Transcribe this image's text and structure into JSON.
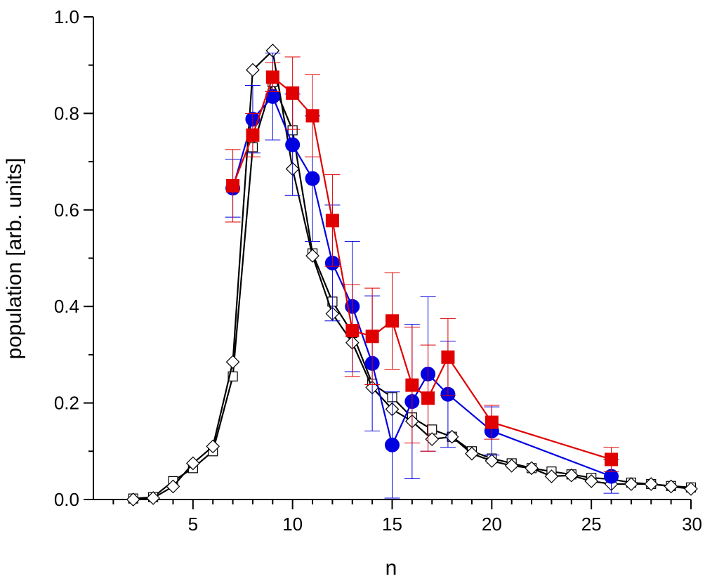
{
  "chart_data": {
    "type": "line",
    "title": "",
    "xlabel": "n",
    "ylabel": "population [arb. units]",
    "xlim": [
      0,
      30
    ],
    "ylim": [
      0,
      1.0
    ],
    "x_ticks_major": [
      5,
      10,
      15,
      20,
      25,
      30
    ],
    "x_tick_labels": [
      "5",
      "10",
      "15",
      "20",
      "25",
      "30"
    ],
    "y_ticks_major": [
      0.0,
      0.2,
      0.4,
      0.6,
      0.8,
      1.0
    ],
    "y_tick_labels": [
      "0.0",
      "0.2",
      "0.4",
      "0.6",
      "0.8",
      "1.0"
    ],
    "grid": false,
    "legend": "none",
    "series": [
      {
        "marker": "filled-square",
        "color": "#e00000",
        "x": [
          7,
          8,
          9,
          10,
          11,
          12,
          13,
          14,
          15,
          16,
          16.8,
          17.8,
          20,
          26
        ],
        "y": [
          0.65,
          0.755,
          0.875,
          0.842,
          0.795,
          0.578,
          0.35,
          0.338,
          0.37,
          0.237,
          0.21,
          0.295,
          0.16,
          0.083
        ],
        "err": [
          0.075,
          0.045,
          0.03,
          0.075,
          0.085,
          0.095,
          0.095,
          0.1,
          0.1,
          0.12,
          0.11,
          0.08,
          0.035,
          0.025
        ]
      },
      {
        "marker": "filled-circle",
        "color": "#0000e0",
        "x": [
          7,
          8,
          9,
          10,
          11,
          12,
          13,
          14,
          15,
          16,
          16.8,
          17.8,
          20,
          26
        ],
        "y": [
          0.645,
          0.788,
          0.835,
          0.735,
          0.665,
          0.49,
          0.4,
          0.282,
          0.113,
          0.203,
          0.26,
          0.218,
          0.142,
          0.048
        ],
        "err": [
          0.06,
          0.07,
          0.09,
          0.105,
          0.13,
          0.12,
          0.135,
          0.14,
          0.11,
          0.16,
          0.16,
          0.11,
          0.05,
          0.035
        ]
      },
      {
        "marker": "open-square",
        "color": "#000000",
        "x": [
          2,
          3,
          4,
          5,
          6,
          7,
          8,
          9,
          10,
          11,
          12,
          13,
          14,
          15,
          16,
          17,
          18,
          19,
          20,
          21,
          22,
          23,
          24,
          25,
          26,
          27,
          28,
          29,
          30
        ],
        "y": [
          0.002,
          0.005,
          0.038,
          0.065,
          0.1,
          0.255,
          0.73,
          0.865,
          0.765,
          0.51,
          0.41,
          0.345,
          0.24,
          0.212,
          0.17,
          0.145,
          0.13,
          0.1,
          0.085,
          0.075,
          0.065,
          0.058,
          0.052,
          0.045,
          0.042,
          0.035,
          0.032,
          0.028,
          0.025
        ]
      },
      {
        "marker": "open-diamond",
        "color": "#000000",
        "x": [
          2,
          3,
          4,
          5,
          6,
          7,
          8,
          9,
          10,
          11,
          12,
          13,
          14,
          15,
          16,
          17,
          18,
          19,
          20,
          21,
          22,
          23,
          24,
          25,
          26,
          27,
          28,
          29,
          30
        ],
        "y": [
          0.0,
          0.003,
          0.027,
          0.075,
          0.11,
          0.285,
          0.89,
          0.93,
          0.685,
          0.505,
          0.385,
          0.325,
          0.232,
          0.187,
          0.162,
          0.125,
          0.13,
          0.095,
          0.08,
          0.07,
          0.065,
          0.048,
          0.05,
          0.038,
          0.032,
          0.032,
          0.032,
          0.027,
          0.022
        ]
      }
    ]
  }
}
